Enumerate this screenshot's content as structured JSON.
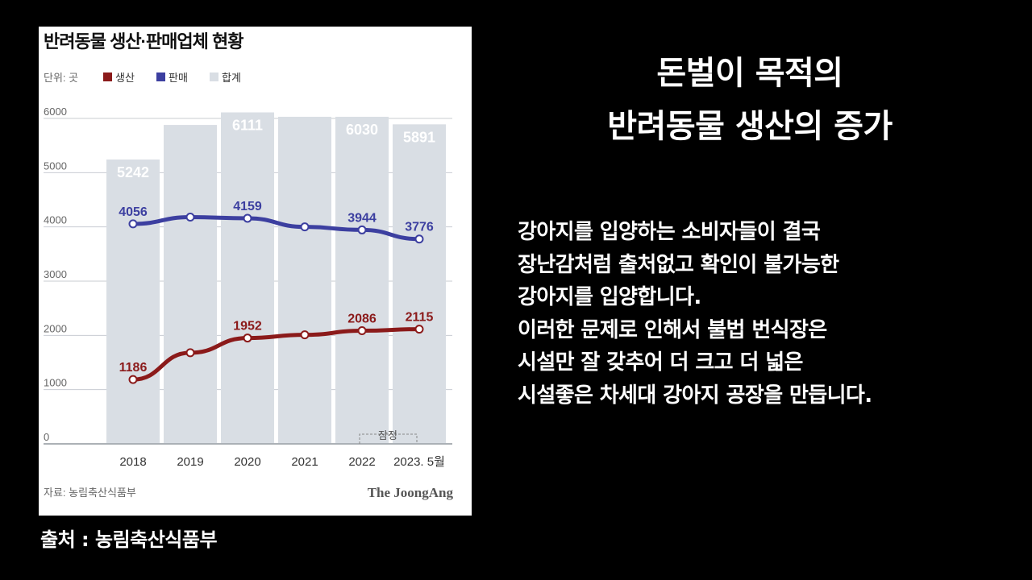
{
  "chart_data": {
    "type": "bar",
    "title": "반려동물 생산·판매업체 현황",
    "unit_label": "단위: 곳",
    "legend": [
      {
        "name": "생산",
        "color": "#8b1a1a"
      },
      {
        "name": "판매",
        "color": "#3c3fa0"
      },
      {
        "name": "합계",
        "color": "#d9dee4"
      }
    ],
    "categories": [
      "2018",
      "2019",
      "2020",
      "2021",
      "2022",
      "2023. 5월"
    ],
    "y_ticks": [
      "6000",
      "5000",
      "4000",
      "3000",
      "2000",
      "1000",
      "0"
    ],
    "ylim": [
      0,
      6000
    ],
    "series": [
      {
        "name": "합계",
        "kind": "bar",
        "values": [
          5242,
          5880,
          6111,
          6030,
          6030,
          5891
        ],
        "labels": [
          "5242",
          "",
          "6111",
          "",
          "6030",
          "5891"
        ]
      },
      {
        "name": "판매",
        "kind": "line",
        "values": [
          4056,
          4180,
          4159,
          4000,
          3944,
          3776
        ],
        "labels": [
          "4056",
          "",
          "4159",
          "",
          "3944",
          "3776"
        ]
      },
      {
        "name": "생산",
        "kind": "line",
        "values": [
          1186,
          1680,
          1952,
          2010,
          2086,
          2115
        ],
        "labels": [
          "1186",
          "",
          "1952",
          "",
          "2086",
          "2115"
        ]
      }
    ],
    "provisional_label": "잠정",
    "source": "자료: 농림축산식품부",
    "brand": "The JoongAng",
    "colors": {
      "bar": "#d9dee4",
      "grid": "#c8ccd2",
      "axis": "#9aa0a6",
      "text": "#333333",
      "tick": "#666666"
    }
  },
  "caption": "출처 : 농림축산식품부",
  "headline": [
    "돈벌이 목적의",
    "반려동물 생산의 증가"
  ],
  "body": [
    "강아지를 입양하는 소비자들이 결국",
    "장난감처럼 출처없고 확인이 불가능한",
    "강아지를 입양합니다.",
    "이러한 문제로 인해서 불법 번식장은",
    "시설만 잘 갖추어 더 크고 더 넓은",
    "시설좋은 차세대 강아지 공장을 만듭니다."
  ]
}
